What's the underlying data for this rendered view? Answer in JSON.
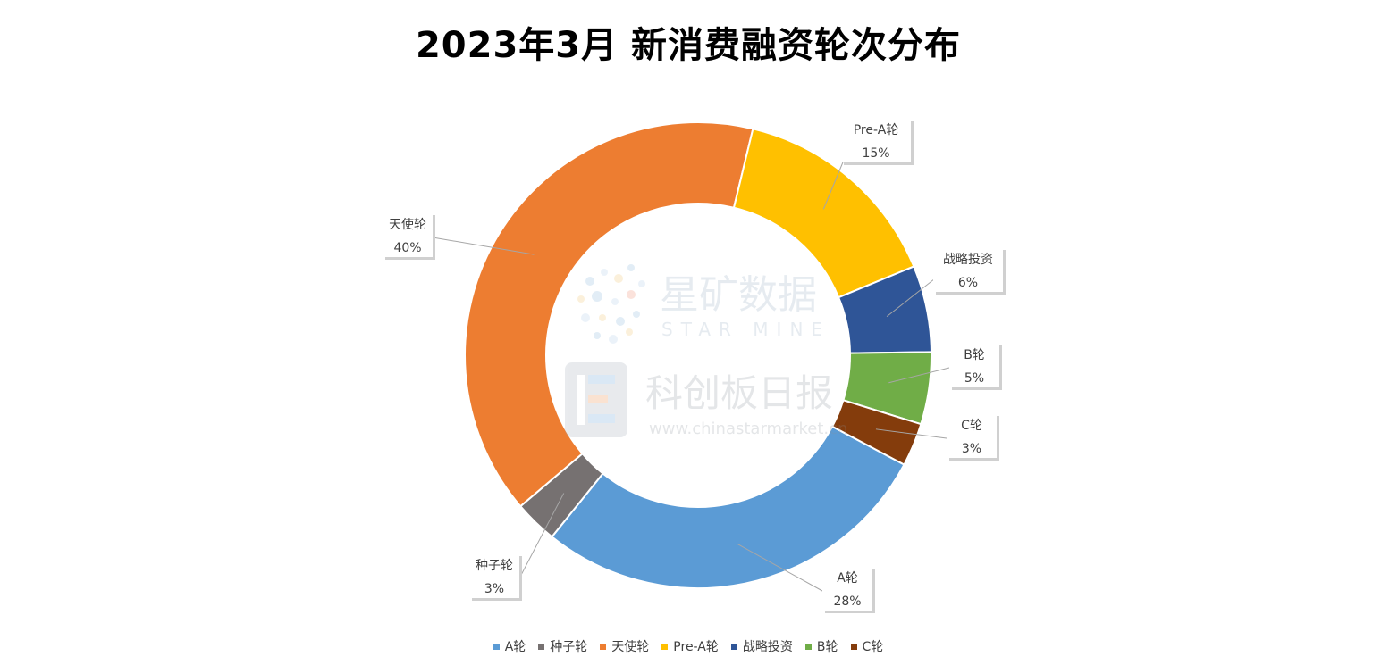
{
  "chart_data": {
    "type": "pie",
    "title": "2023年3月 新消费融资轮次分布",
    "categories": [
      "A轮",
      "种子轮",
      "天使轮",
      "Pre-A轮",
      "战略投资",
      "B轮",
      "C轮"
    ],
    "values": [
      28,
      3,
      40,
      15,
      6,
      5,
      3
    ],
    "value_labels": [
      "28%",
      "3%",
      "40%",
      "15%",
      "6%",
      "5%",
      "3%"
    ],
    "colors": [
      "#5B9BD5",
      "#767171",
      "#ED7D31",
      "#FFC000",
      "#2F5597",
      "#70AD47",
      "#843C0C"
    ],
    "legend_position": "bottom"
  },
  "watermark": {
    "brand_cn": "星矿数据",
    "brand_en": "STAR MINE",
    "brand2_cn": "科创板日报",
    "url": "www.chinastarmarket.cn"
  }
}
